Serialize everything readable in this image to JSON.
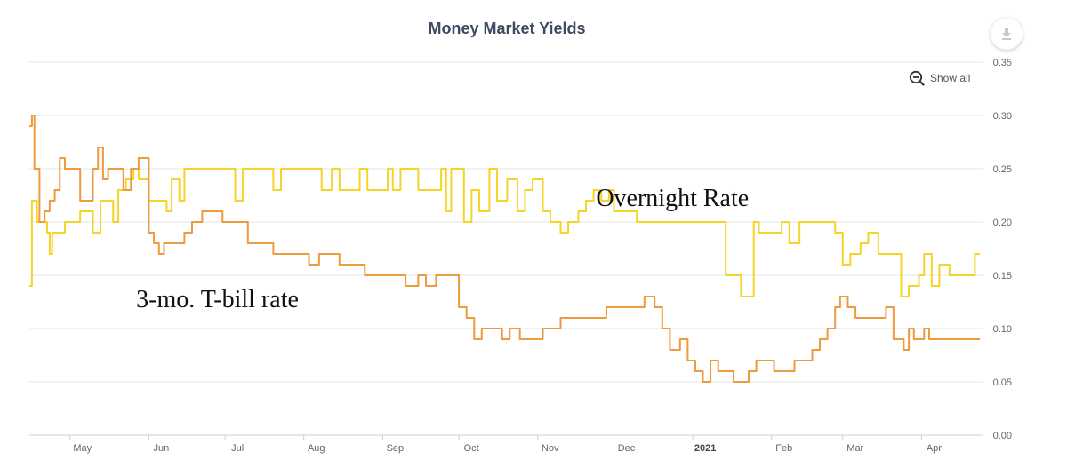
{
  "header": {
    "title": "Money Market Yields",
    "download_icon": "download-icon",
    "show_all_label": "Show all",
    "show_all_icon": "zoom-out-icon"
  },
  "chart_data": {
    "type": "line",
    "title": "Money Market Yields",
    "xlabel": "",
    "ylabel": "",
    "ylim": [
      0,
      0.35
    ],
    "y_ticks": [
      "0.00",
      "0.05",
      "0.10",
      "0.15",
      "0.20",
      "0.25",
      "0.30",
      "0.35"
    ],
    "y_tick_values": [
      0,
      0.05,
      0.1,
      0.15,
      0.2,
      0.25,
      0.3,
      0.35
    ],
    "y_axis_side": "right",
    "grid": true,
    "x_start": "2020-04-15",
    "x_end": "2021-04-25",
    "x_ticks": [
      {
        "label": "May",
        "date": "2020-05-01"
      },
      {
        "label": "Jun",
        "date": "2020-06-01"
      },
      {
        "label": "Jul",
        "date": "2020-07-01"
      },
      {
        "label": "Aug",
        "date": "2020-08-01"
      },
      {
        "label": "Sep",
        "date": "2020-09-01"
      },
      {
        "label": "Oct",
        "date": "2020-10-01"
      },
      {
        "label": "Nov",
        "date": "2020-11-01"
      },
      {
        "label": "Dec",
        "date": "2020-12-01"
      },
      {
        "label": "2021",
        "date": "2021-01-01",
        "bold": true
      },
      {
        "label": "Feb",
        "date": "2021-02-01"
      },
      {
        "label": "Mar",
        "date": "2021-03-01"
      },
      {
        "label": "Apr",
        "date": "2021-04-01"
      }
    ],
    "annotations": [
      {
        "text": "Overnight Rate",
        "series": "overnight",
        "date": "2020-12-24",
        "y": 0.215
      },
      {
        "text": "3-mo. T-bill rate",
        "series": "tbill",
        "date": "2020-06-28",
        "y": 0.12
      }
    ],
    "series": [
      {
        "id": "overnight",
        "color": "#f5d327",
        "points": [
          [
            "2020-04-15",
            0.14
          ],
          [
            "2020-04-16",
            0.22
          ],
          [
            "2020-04-18",
            0.2
          ],
          [
            "2020-04-22",
            0.19
          ],
          [
            "2020-04-23",
            0.17
          ],
          [
            "2020-04-24",
            0.19
          ],
          [
            "2020-04-28",
            0.19
          ],
          [
            "2020-04-29",
            0.2
          ],
          [
            "2020-05-01",
            0.2
          ],
          [
            "2020-05-05",
            0.21
          ],
          [
            "2020-05-08",
            0.21
          ],
          [
            "2020-05-10",
            0.19
          ],
          [
            "2020-05-13",
            0.22
          ],
          [
            "2020-05-18",
            0.2
          ],
          [
            "2020-05-20",
            0.23
          ],
          [
            "2020-05-23",
            0.24
          ],
          [
            "2020-05-26",
            0.25
          ],
          [
            "2020-05-28",
            0.24
          ],
          [
            "2020-06-01",
            0.22
          ],
          [
            "2020-06-05",
            0.22
          ],
          [
            "2020-06-08",
            0.21
          ],
          [
            "2020-06-10",
            0.24
          ],
          [
            "2020-06-13",
            0.22
          ],
          [
            "2020-06-15",
            0.25
          ],
          [
            "2020-06-20",
            0.25
          ],
          [
            "2020-06-27",
            0.25
          ],
          [
            "2020-07-01",
            0.25
          ],
          [
            "2020-07-05",
            0.22
          ],
          [
            "2020-07-08",
            0.25
          ],
          [
            "2020-07-15",
            0.25
          ],
          [
            "2020-07-20",
            0.23
          ],
          [
            "2020-07-23",
            0.25
          ],
          [
            "2020-07-30",
            0.25
          ],
          [
            "2020-08-05",
            0.25
          ],
          [
            "2020-08-08",
            0.23
          ],
          [
            "2020-08-12",
            0.25
          ],
          [
            "2020-08-15",
            0.23
          ],
          [
            "2020-08-20",
            0.23
          ],
          [
            "2020-08-23",
            0.25
          ],
          [
            "2020-08-26",
            0.23
          ],
          [
            "2020-09-01",
            0.23
          ],
          [
            "2020-09-03",
            0.25
          ],
          [
            "2020-09-05",
            0.23
          ],
          [
            "2020-09-08",
            0.25
          ],
          [
            "2020-09-10",
            0.25
          ],
          [
            "2020-09-15",
            0.23
          ],
          [
            "2020-09-20",
            0.23
          ],
          [
            "2020-09-24",
            0.25
          ],
          [
            "2020-09-26",
            0.21
          ],
          [
            "2020-09-28",
            0.25
          ],
          [
            "2020-10-01",
            0.25
          ],
          [
            "2020-10-03",
            0.2
          ],
          [
            "2020-10-06",
            0.23
          ],
          [
            "2020-10-09",
            0.21
          ],
          [
            "2020-10-13",
            0.25
          ],
          [
            "2020-10-16",
            0.22
          ],
          [
            "2020-10-20",
            0.24
          ],
          [
            "2020-10-24",
            0.21
          ],
          [
            "2020-10-27",
            0.23
          ],
          [
            "2020-10-30",
            0.24
          ],
          [
            "2020-11-03",
            0.21
          ],
          [
            "2020-11-06",
            0.2
          ],
          [
            "2020-11-10",
            0.19
          ],
          [
            "2020-11-13",
            0.2
          ],
          [
            "2020-11-17",
            0.21
          ],
          [
            "2020-11-20",
            0.22
          ],
          [
            "2020-11-23",
            0.23
          ],
          [
            "2020-11-26",
            0.22
          ],
          [
            "2020-11-29",
            0.23
          ],
          [
            "2020-12-01",
            0.21
          ],
          [
            "2020-12-05",
            0.21
          ],
          [
            "2020-12-10",
            0.2
          ],
          [
            "2020-12-20",
            0.2
          ],
          [
            "2021-01-10",
            0.2
          ],
          [
            "2021-01-14",
            0.15
          ],
          [
            "2021-01-19",
            0.15
          ],
          [
            "2021-01-20",
            0.13
          ],
          [
            "2021-01-25",
            0.2
          ],
          [
            "2021-01-27",
            0.19
          ],
          [
            "2021-01-30",
            0.19
          ],
          [
            "2021-02-05",
            0.2
          ],
          [
            "2021-02-08",
            0.18
          ],
          [
            "2021-02-12",
            0.2
          ],
          [
            "2021-02-20",
            0.2
          ],
          [
            "2021-02-26",
            0.19
          ],
          [
            "2021-03-01",
            0.16
          ],
          [
            "2021-03-04",
            0.17
          ],
          [
            "2021-03-08",
            0.18
          ],
          [
            "2021-03-11",
            0.19
          ],
          [
            "2021-03-15",
            0.17
          ],
          [
            "2021-03-20",
            0.17
          ],
          [
            "2021-03-24",
            0.13
          ],
          [
            "2021-03-27",
            0.14
          ],
          [
            "2021-03-31",
            0.15
          ],
          [
            "2021-04-02",
            0.17
          ],
          [
            "2021-04-05",
            0.14
          ],
          [
            "2021-04-08",
            0.16
          ],
          [
            "2021-04-12",
            0.15
          ],
          [
            "2021-04-18",
            0.15
          ],
          [
            "2021-04-22",
            0.17
          ],
          [
            "2021-04-24",
            0.17
          ]
        ]
      },
      {
        "id": "tbill",
        "color": "#ee9a3e",
        "points": [
          [
            "2020-04-15",
            0.29
          ],
          [
            "2020-04-16",
            0.3
          ],
          [
            "2020-04-17",
            0.25
          ],
          [
            "2020-04-19",
            0.2
          ],
          [
            "2020-04-21",
            0.21
          ],
          [
            "2020-04-23",
            0.22
          ],
          [
            "2020-04-25",
            0.23
          ],
          [
            "2020-04-27",
            0.26
          ],
          [
            "2020-04-29",
            0.25
          ],
          [
            "2020-05-03",
            0.25
          ],
          [
            "2020-05-05",
            0.22
          ],
          [
            "2020-05-08",
            0.22
          ],
          [
            "2020-05-10",
            0.25
          ],
          [
            "2020-05-12",
            0.27
          ],
          [
            "2020-05-14",
            0.24
          ],
          [
            "2020-05-16",
            0.25
          ],
          [
            "2020-05-20",
            0.25
          ],
          [
            "2020-05-22",
            0.23
          ],
          [
            "2020-05-25",
            0.25
          ],
          [
            "2020-05-28",
            0.26
          ],
          [
            "2020-06-01",
            0.19
          ],
          [
            "2020-06-03",
            0.18
          ],
          [
            "2020-06-05",
            0.17
          ],
          [
            "2020-06-07",
            0.18
          ],
          [
            "2020-06-12",
            0.18
          ],
          [
            "2020-06-15",
            0.19
          ],
          [
            "2020-06-18",
            0.2
          ],
          [
            "2020-06-22",
            0.21
          ],
          [
            "2020-06-26",
            0.21
          ],
          [
            "2020-06-30",
            0.2
          ],
          [
            "2020-07-05",
            0.2
          ],
          [
            "2020-07-10",
            0.18
          ],
          [
            "2020-07-15",
            0.18
          ],
          [
            "2020-07-20",
            0.17
          ],
          [
            "2020-07-25",
            0.17
          ],
          [
            "2020-07-30",
            0.17
          ],
          [
            "2020-08-03",
            0.16
          ],
          [
            "2020-08-07",
            0.17
          ],
          [
            "2020-08-10",
            0.17
          ],
          [
            "2020-08-15",
            0.16
          ],
          [
            "2020-08-20",
            0.16
          ],
          [
            "2020-08-25",
            0.15
          ],
          [
            "2020-08-30",
            0.15
          ],
          [
            "2020-09-05",
            0.15
          ],
          [
            "2020-09-10",
            0.14
          ],
          [
            "2020-09-15",
            0.15
          ],
          [
            "2020-09-18",
            0.14
          ],
          [
            "2020-09-22",
            0.15
          ],
          [
            "2020-09-27",
            0.15
          ],
          [
            "2020-10-01",
            0.12
          ],
          [
            "2020-10-04",
            0.11
          ],
          [
            "2020-10-07",
            0.09
          ],
          [
            "2020-10-10",
            0.1
          ],
          [
            "2020-10-15",
            0.1
          ],
          [
            "2020-10-18",
            0.09
          ],
          [
            "2020-10-21",
            0.1
          ],
          [
            "2020-10-25",
            0.09
          ],
          [
            "2020-10-30",
            0.09
          ],
          [
            "2020-11-03",
            0.1
          ],
          [
            "2020-11-07",
            0.1
          ],
          [
            "2020-11-10",
            0.11
          ],
          [
            "2020-11-20",
            0.11
          ],
          [
            "2020-11-25",
            0.11
          ],
          [
            "2020-11-28",
            0.12
          ],
          [
            "2020-12-05",
            0.12
          ],
          [
            "2020-12-10",
            0.12
          ],
          [
            "2020-12-13",
            0.13
          ],
          [
            "2020-12-17",
            0.12
          ],
          [
            "2020-12-20",
            0.1
          ],
          [
            "2020-12-23",
            0.08
          ],
          [
            "2020-12-27",
            0.09
          ],
          [
            "2020-12-30",
            0.07
          ],
          [
            "2021-01-02",
            0.06
          ],
          [
            "2021-01-05",
            0.05
          ],
          [
            "2021-01-08",
            0.07
          ],
          [
            "2021-01-11",
            0.06
          ],
          [
            "2021-01-14",
            0.06
          ],
          [
            "2021-01-17",
            0.05
          ],
          [
            "2021-01-20",
            0.05
          ],
          [
            "2021-01-23",
            0.06
          ],
          [
            "2021-01-26",
            0.07
          ],
          [
            "2021-01-29",
            0.07
          ],
          [
            "2021-02-02",
            0.06
          ],
          [
            "2021-02-06",
            0.06
          ],
          [
            "2021-02-10",
            0.07
          ],
          [
            "2021-02-14",
            0.07
          ],
          [
            "2021-02-17",
            0.08
          ],
          [
            "2021-02-20",
            0.09
          ],
          [
            "2021-02-23",
            0.1
          ],
          [
            "2021-02-26",
            0.12
          ],
          [
            "2021-02-28",
            0.13
          ],
          [
            "2021-03-03",
            0.12
          ],
          [
            "2021-03-06",
            0.11
          ],
          [
            "2021-03-12",
            0.11
          ],
          [
            "2021-03-16",
            0.11
          ],
          [
            "2021-03-18",
            0.12
          ],
          [
            "2021-03-21",
            0.09
          ],
          [
            "2021-03-25",
            0.08
          ],
          [
            "2021-03-27",
            0.1
          ],
          [
            "2021-03-29",
            0.09
          ],
          [
            "2021-04-02",
            0.1
          ],
          [
            "2021-04-04",
            0.09
          ],
          [
            "2021-04-10",
            0.09
          ],
          [
            "2021-04-24",
            0.09
          ]
        ]
      }
    ]
  }
}
